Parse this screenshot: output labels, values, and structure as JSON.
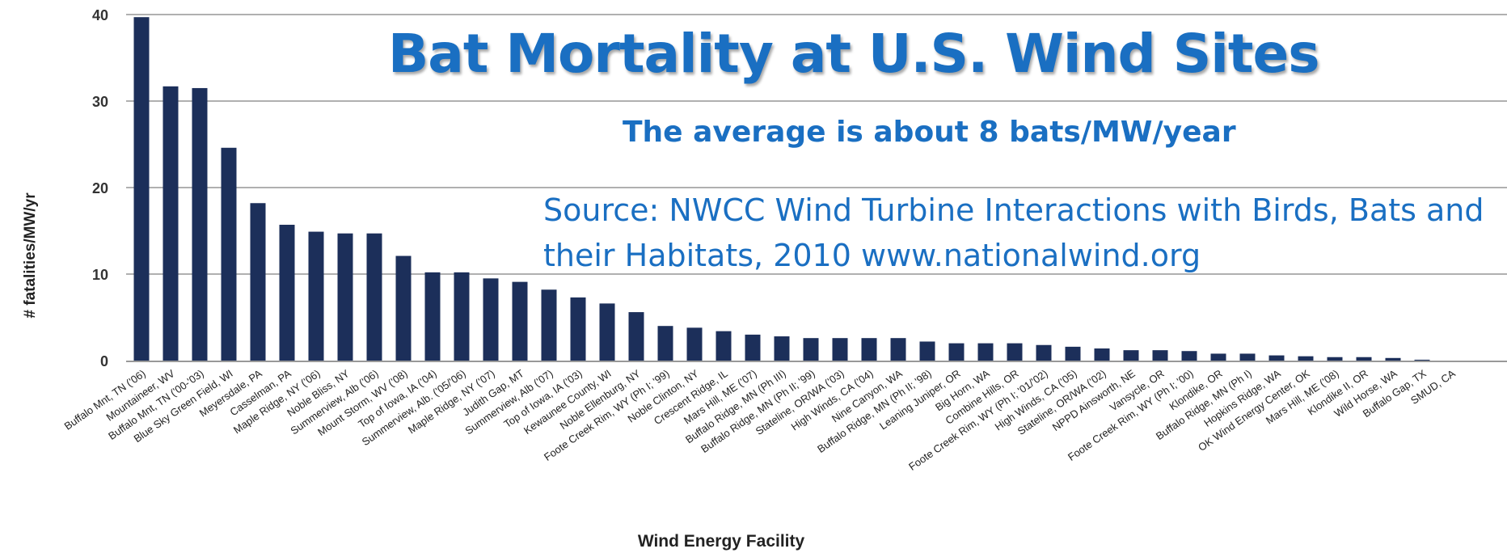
{
  "chart_data": {
    "type": "bar",
    "title": "Bat Mortality at U.S. Wind Sites",
    "subtitle": "The average is about 8 bats/MW/year",
    "annotation": "Source: NWCC Wind Turbine Interactions with Birds, Bats and their Habitats, 2010 www.nationalwind.org",
    "xlabel": "Wind Energy Facility",
    "ylabel": "# fatalities/MW/yr",
    "ylim": [
      0,
      40
    ],
    "yticks": [
      0,
      10,
      20,
      30,
      40
    ],
    "grid": true,
    "bar_color": "#1c2f5a",
    "title_color": "#1a6fc2",
    "categories": [
      "Buffalo Mnt, TN ('06)",
      "Mountaineer, WV",
      "Buffalo Mnt, TN ('00-'03)",
      "Blue Sky Green Field, WI",
      "Meyersdale, PA",
      "Casselman, PA",
      "Maple Ridge, NY ('06)",
      "Noble Bliss, NY",
      "Summerview, Alb ('06)",
      "Mount Storm, WV ('08)",
      "Top of Iowa, IA ('04)",
      "Summerview, Alb. ('05/'06)",
      "Maple Ridge, NY ('07)",
      "Judith Gap, MT",
      "Summerview, Alb ('07)",
      "Top of Iowa, IA ('03)",
      "Kewaunee County, WI",
      "Noble Ellenburg, NY",
      "Foote Creek Rim, WY (Ph I; '99)",
      "Noble Clinton, NY",
      "Crescent Ridge, IL",
      "Mars Hill, ME ('07)",
      "Buffalo Ridge, MN (Ph III)",
      "Buffalo Ridge, MN (Ph II; '99)",
      "Stateline, OR/WA ('03)",
      "High Winds, CA ('04)",
      "Nine Canyon, WA",
      "Buffalo Ridge, MN (Ph II; '98)",
      "Leaning Juniper, OR",
      "Big Horn, WA",
      "Combine Hills, OR",
      "Foote Creek Rim, WY (Ph I; '01/'02)",
      "High Winds, CA ('05)",
      "Stateline, OR/WA ('02)",
      "NPPD Ainsworth, NE",
      "Vansycle, OR",
      "Foote Creek Rim, WY (Ph I; '00)",
      "Klondike, OR",
      "Buffalo Ridge, MN (Ph I)",
      "Hopkins Ridge, WA",
      "OK Wind Energy Center, OK",
      "Mars Hill, ME ('08)",
      "Klondike II, OR",
      "Wild Horse, WA",
      "Buffalo Gap, TX",
      "SMUD, CA"
    ],
    "values": [
      39.7,
      31.7,
      31.5,
      24.6,
      18.2,
      15.7,
      14.9,
      14.7,
      14.7,
      12.1,
      10.2,
      10.2,
      9.5,
      9.1,
      8.2,
      7.3,
      6.6,
      5.6,
      4.0,
      3.8,
      3.4,
      3.0,
      2.8,
      2.6,
      2.6,
      2.6,
      2.6,
      2.2,
      2.0,
      2.0,
      2.0,
      1.8,
      1.6,
      1.4,
      1.2,
      1.2,
      1.1,
      0.8,
      0.8,
      0.6,
      0.5,
      0.4,
      0.4,
      0.3,
      0.1,
      0.0
    ]
  }
}
